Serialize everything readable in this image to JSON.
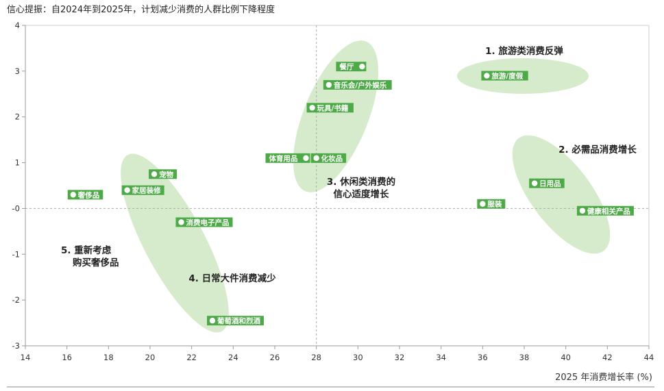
{
  "title": "信心提振：自2024年到2025年，计划减少消费的人群比例下降程度",
  "chart_data": {
    "type": "scatter",
    "xlabel": "2025 年消费增长率 (%)",
    "ylabel": "",
    "xlim": [
      14,
      44
    ],
    "ylim": [
      -3,
      4
    ],
    "x_ticks": [
      "14",
      "16",
      "18",
      "20",
      "22",
      "24",
      "26",
      "28",
      "30",
      "32",
      "34",
      "36",
      "38",
      "40",
      "42",
      "44"
    ],
    "y_ticks": [
      "4",
      "3",
      "2",
      "1",
      "-0",
      "-1",
      "-2",
      "-3"
    ],
    "reference_lines": {
      "x": 28,
      "y": 0
    },
    "colors": {
      "point": "#4daa47",
      "cluster": "#d6ebcc",
      "text": "#222222",
      "axis": "#999999"
    },
    "points": [
      {
        "label": "餐厅",
        "x": 30.2,
        "y": 3.1,
        "label_side": "left"
      },
      {
        "label": "音乐会/户外娱乐",
        "x": 28.6,
        "y": 2.7,
        "label_side": "right"
      },
      {
        "label": "玩具/书籍",
        "x": 27.8,
        "y": 2.2,
        "label_side": "right"
      },
      {
        "label": "体育用品",
        "x": 27.5,
        "y": 1.1,
        "label_side": "left"
      },
      {
        "label": "化妆品",
        "x": 28.0,
        "y": 1.1,
        "label_side": "right"
      },
      {
        "label": "旅游/度假",
        "x": 36.2,
        "y": 2.9,
        "label_side": "right"
      },
      {
        "label": "日用品",
        "x": 38.5,
        "y": 0.55,
        "label_side": "right"
      },
      {
        "label": "服装",
        "x": 36.0,
        "y": 0.1,
        "label_side": "right"
      },
      {
        "label": "健康相关产品",
        "x": 40.8,
        "y": -0.05,
        "label_side": "right"
      },
      {
        "label": "宠物",
        "x": 20.2,
        "y": 0.75,
        "label_side": "right"
      },
      {
        "label": "家居装修",
        "x": 18.9,
        "y": 0.4,
        "label_side": "right"
      },
      {
        "label": "奢侈品",
        "x": 16.3,
        "y": 0.3,
        "label_side": "right"
      },
      {
        "label": "消费电子产品",
        "x": 21.5,
        "y": -0.3,
        "label_side": "right"
      },
      {
        "label": "葡萄酒和烈酒",
        "x": 23.0,
        "y": -2.45,
        "label_side": "right"
      }
    ],
    "clusters": [
      {
        "lines": [
          "1. 旅游类消费反弹"
        ]
      },
      {
        "lines": [
          "2. 必需品消费增长"
        ]
      },
      {
        "lines": [
          "3. 休闲类消费的",
          "信心适度增长"
        ]
      },
      {
        "lines": [
          "4. 日常大件消费减少"
        ]
      },
      {
        "lines": [
          "5. 重新考虑",
          "购买奢侈品"
        ]
      }
    ]
  }
}
